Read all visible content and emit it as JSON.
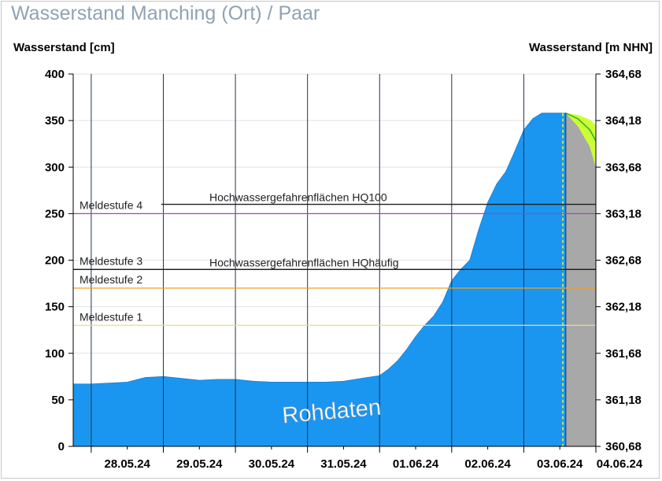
{
  "header": {
    "title": "Wasserstand Manching (Ort) / Paar"
  },
  "chart_data": {
    "type": "area",
    "title": "Wasserstand Manching (Ort) / Paar",
    "ylabel": "Wasserstand [cm]",
    "ylabel_right": "Wasserstand [m NHN]",
    "ylim": [
      0,
      400
    ],
    "yticks": [
      0,
      50,
      100,
      150,
      200,
      250,
      300,
      350,
      400
    ],
    "y2ticks": [
      "360,68",
      "361,18",
      "361,68",
      "362,18",
      "362,68",
      "363,18",
      "363,68",
      "364,18",
      "364,68"
    ],
    "x_start": "27.05.24 18:00",
    "x_end": "04.06.24 00:00",
    "xticks": [
      "28.05.24",
      "29.05.24",
      "30.05.24",
      "31.05.24",
      "01.06.24",
      "02.06.24",
      "03.06.24",
      "04.06.24"
    ],
    "grid": true,
    "series": [
      {
        "name": "Rohdaten",
        "color": "#1a96f0",
        "x": [
          "27.05.24 18:00",
          "28.05.24 00:00",
          "28.05.24 06:00",
          "28.05.24 12:00",
          "28.05.24 18:00",
          "29.05.24 00:00",
          "29.05.24 06:00",
          "29.05.24 12:00",
          "29.05.24 18:00",
          "30.05.24 00:00",
          "30.05.24 06:00",
          "30.05.24 12:00",
          "30.05.24 18:00",
          "31.05.24 00:00",
          "31.05.24 06:00",
          "31.05.24 12:00",
          "31.05.24 18:00",
          "01.06.24 00:00",
          "01.06.24 03:00",
          "01.06.24 06:00",
          "01.06.24 09:00",
          "01.06.24 12:00",
          "01.06.24 15:00",
          "01.06.24 18:00",
          "01.06.24 21:00",
          "02.06.24 00:00",
          "02.06.24 03:00",
          "02.06.24 06:00",
          "02.06.24 09:00",
          "02.06.24 12:00",
          "02.06.24 15:00",
          "02.06.24 18:00",
          "02.06.24 21:00",
          "03.06.24 00:00",
          "03.06.24 03:00",
          "03.06.24 06:00",
          "03.06.24 09:00",
          "03.06.24 12:00",
          "03.06.24 14:00"
        ],
        "values": [
          67,
          67,
          68,
          69,
          74,
          75,
          73,
          71,
          72,
          72,
          70,
          69,
          69,
          69,
          69,
          70,
          73,
          76,
          83,
          92,
          104,
          118,
          130,
          140,
          155,
          178,
          190,
          200,
          233,
          262,
          282,
          295,
          317,
          340,
          352,
          358,
          358,
          358,
          358
        ]
      }
    ],
    "forecast": {
      "color": "#2ab52a",
      "band_color": "#ccff33",
      "x": [
        "03.06.24 14:00",
        "03.06.24 18:00",
        "03.06.24 22:00",
        "04.06.24 00:00"
      ],
      "values": [
        358,
        352,
        340,
        328
      ],
      "upper": [
        358,
        356,
        351,
        345
      ],
      "lower": [
        358,
        344,
        322,
        300
      ]
    },
    "thresholds": [
      {
        "label": "Meldestufe 1",
        "value": 130,
        "color": "#f5d889"
      },
      {
        "label": "Meldestufe 2",
        "value": 170,
        "color": "#f0a020"
      },
      {
        "label": "Meldestufe 3",
        "value": 190,
        "color": "#202020"
      },
      {
        "label": "Meldestufe 4",
        "value": 250,
        "color": "#b040b0"
      }
    ],
    "hazard_lines": [
      {
        "label": "Hochwassergefahrenflächen HQhäufig",
        "value": 190,
        "color": "#202020"
      },
      {
        "label": "Hochwassergefahrenflächen HQ100",
        "value": 260,
        "color": "#202020"
      }
    ],
    "now_marker": "03.06.24 13:00",
    "forecast_start": "03.06.24 14:00",
    "watermark": "Rohdaten"
  }
}
